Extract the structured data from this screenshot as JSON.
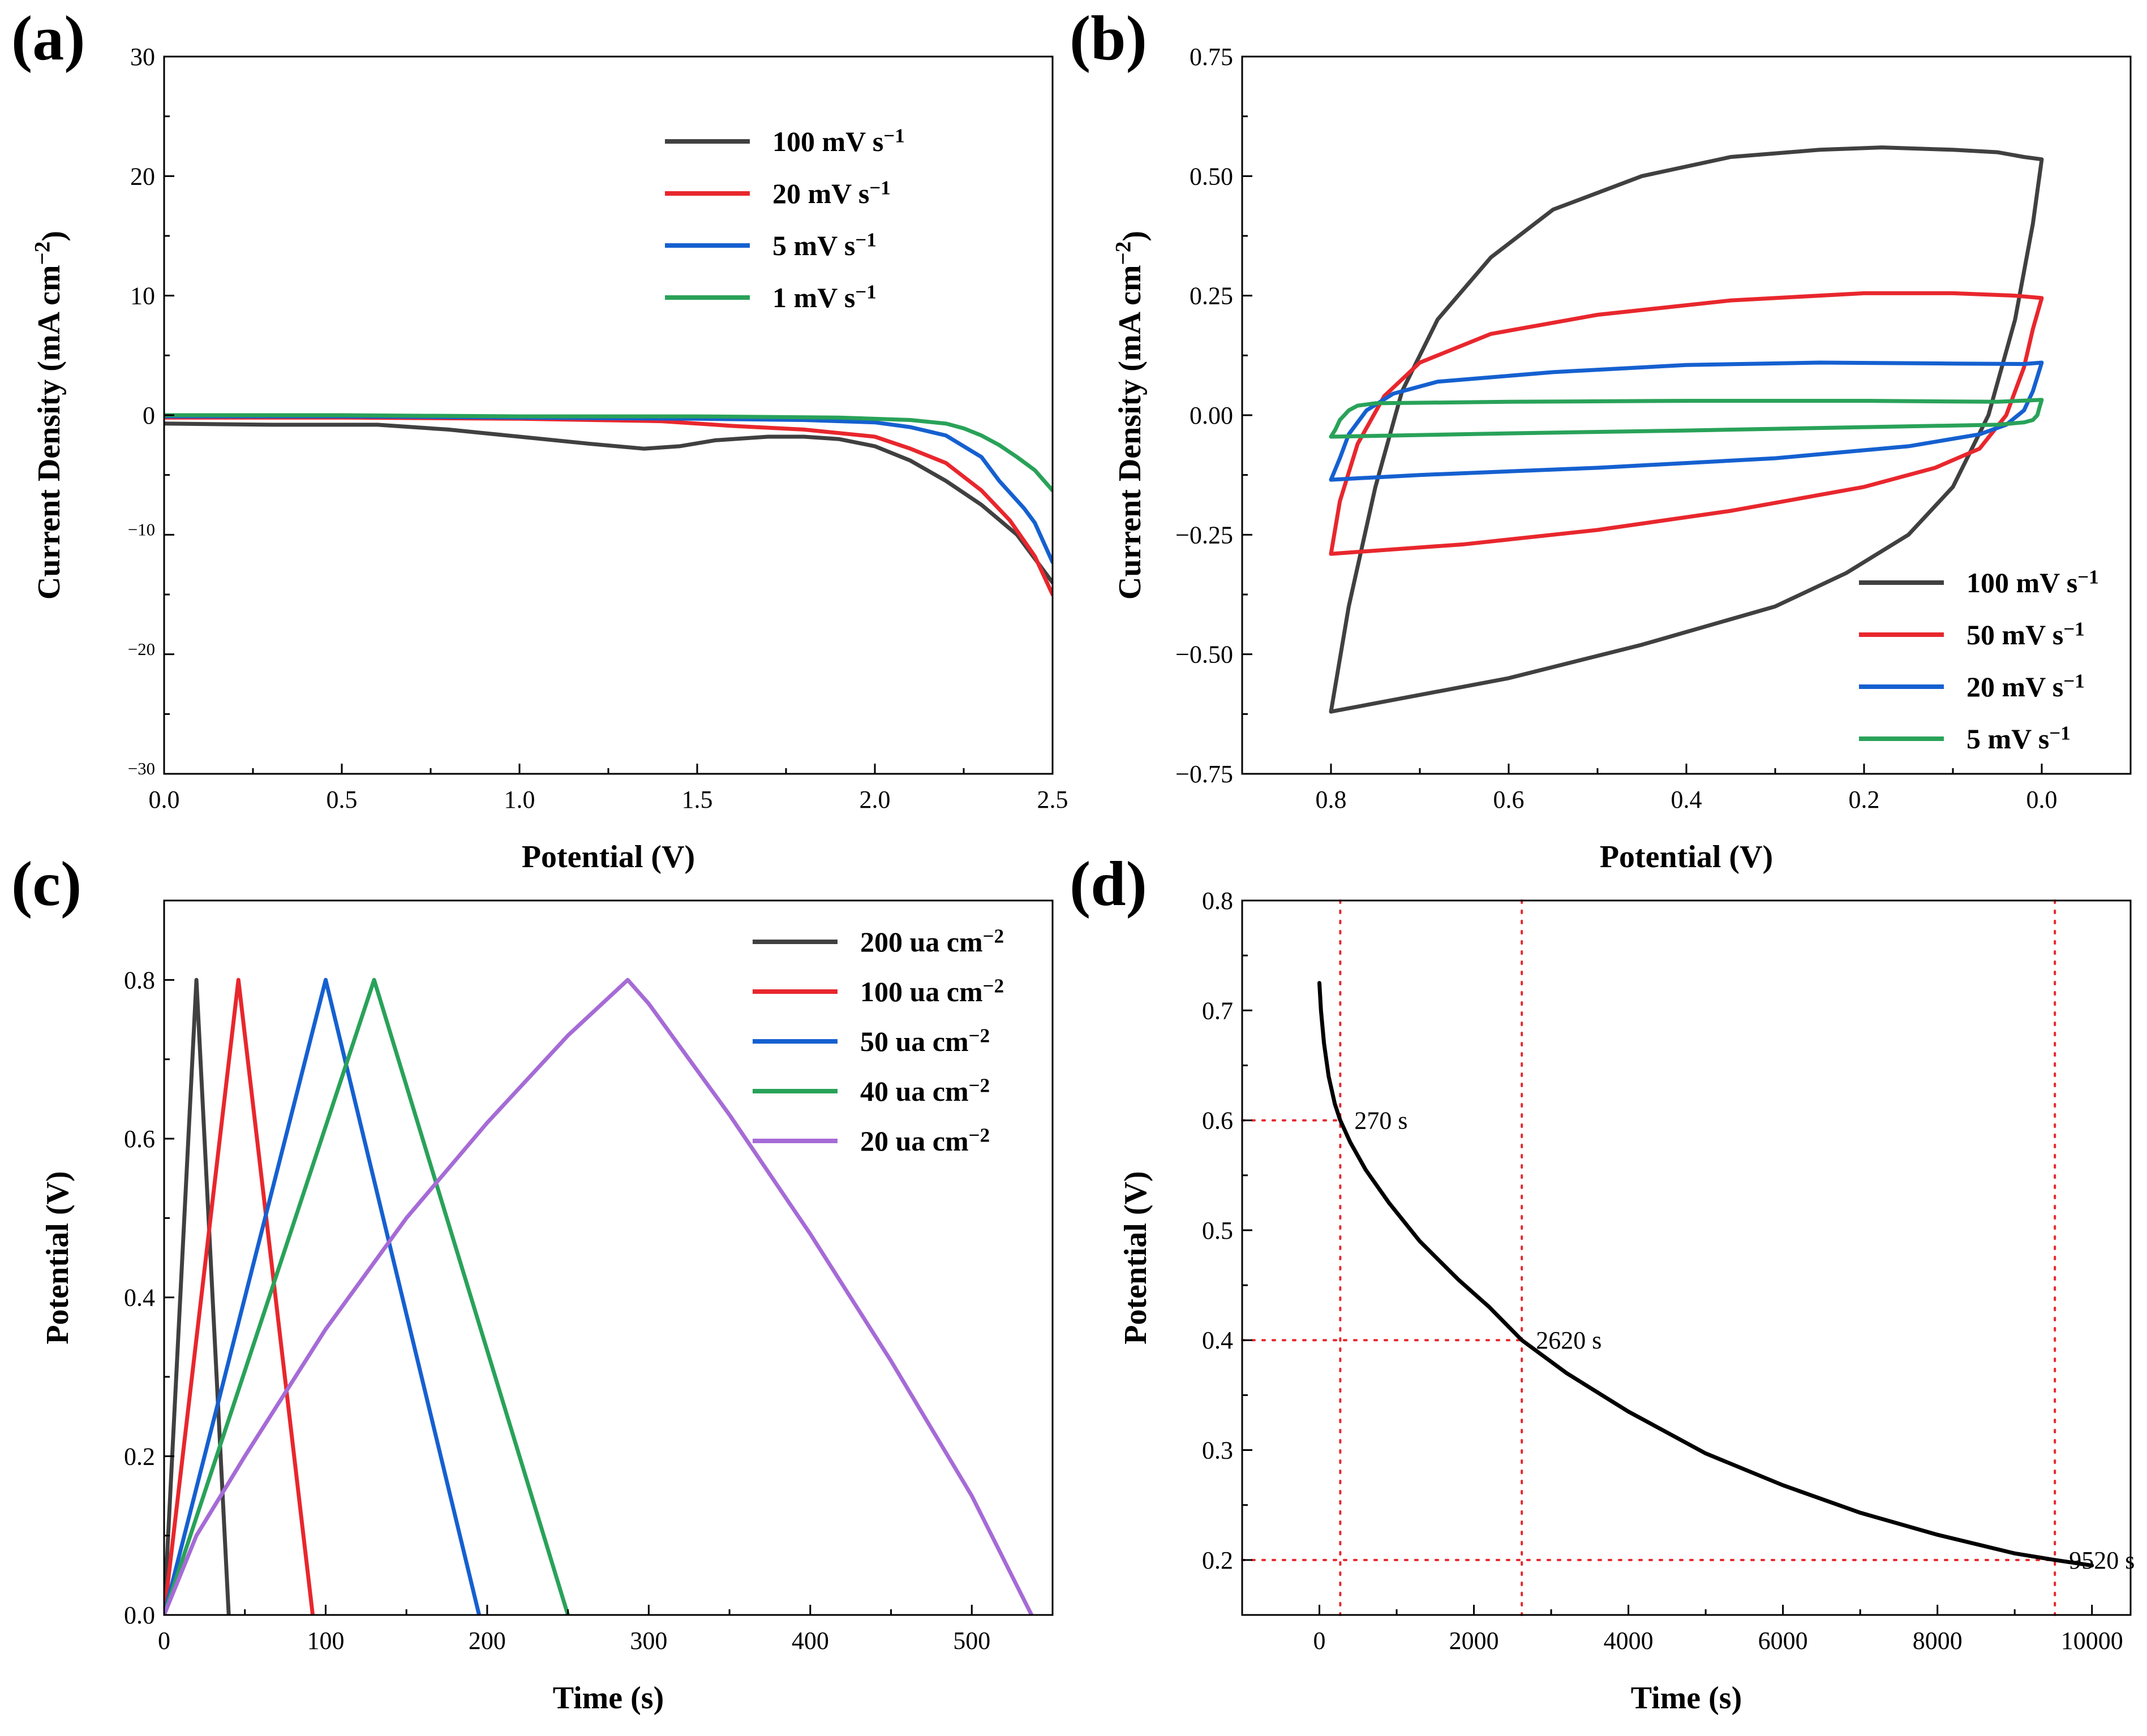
{
  "chart_data": [
    {
      "panel_label": "(a)",
      "type": "line",
      "xlabel": "Potential (V)",
      "ylabel": "Current Density (mA cm−2)",
      "xlim": [
        0,
        2.5
      ],
      "ylim": [
        -30,
        30
      ],
      "xticks": [
        0,
        0.5,
        1.0,
        1.5,
        2.0,
        2.5
      ],
      "xtick_labels": [
        "0.0",
        "0.5",
        "1.0",
        "1.5",
        "2.0",
        "2.5"
      ],
      "yticks": [
        -30,
        -20,
        -10,
        0,
        10,
        20,
        30
      ],
      "ytick_labels": [
        "−30",
        "−20",
        "−10",
        "0",
        "10",
        "20",
        "30"
      ],
      "legend_position": "top-right",
      "series": [
        {
          "name": "100 mV s−1",
          "color": "#404040",
          "x": [
            0,
            0.3,
            0.6,
            0.8,
            1.0,
            1.2,
            1.35,
            1.45,
            1.55,
            1.7,
            1.8,
            1.9,
            2.0,
            2.1,
            2.2,
            2.3,
            2.4,
            2.45,
            2.5
          ],
          "y": [
            -0.7,
            -0.8,
            -0.8,
            -1.2,
            -1.8,
            -2.4,
            -2.8,
            -2.6,
            -2.1,
            -1.8,
            -1.8,
            -2.0,
            -2.6,
            -3.8,
            -5.5,
            -7.5,
            -10.0,
            -12.0,
            -14.0
          ]
        },
        {
          "name": "20 mV s−1",
          "color": "#e8272d",
          "x": [
            0,
            0.5,
            1.0,
            1.4,
            1.6,
            1.8,
            2.0,
            2.1,
            2.2,
            2.3,
            2.38,
            2.45,
            2.5
          ],
          "y": [
            -0.2,
            -0.2,
            -0.3,
            -0.5,
            -0.9,
            -1.2,
            -1.8,
            -2.8,
            -4.0,
            -6.3,
            -8.8,
            -11.8,
            -15.0
          ]
        },
        {
          "name": "5 mV s−1",
          "color": "#1560d0",
          "x": [
            0,
            0.5,
            1.0,
            1.5,
            1.8,
            2.0,
            2.1,
            2.2,
            2.3,
            2.35,
            2.42,
            2.45,
            2.5
          ],
          "y": [
            -0.1,
            -0.1,
            -0.2,
            -0.3,
            -0.4,
            -0.6,
            -1.0,
            -1.7,
            -3.5,
            -5.5,
            -7.8,
            -9.0,
            -12.3
          ]
        },
        {
          "name": "1 mV s−1",
          "color": "#29a259",
          "x": [
            0,
            0.5,
            1.0,
            1.5,
            1.9,
            2.1,
            2.2,
            2.25,
            2.3,
            2.35,
            2.4,
            2.45,
            2.5
          ],
          "y": [
            0.0,
            0.0,
            -0.1,
            -0.1,
            -0.2,
            -0.4,
            -0.7,
            -1.1,
            -1.7,
            -2.5,
            -3.5,
            -4.6,
            -6.3
          ]
        }
      ]
    },
    {
      "panel_label": "(b)",
      "type": "line",
      "xlabel": "Potential (V)",
      "ylabel": "Current Density (mA cm−2)",
      "xlim": [
        0.9,
        -0.1
      ],
      "ylim": [
        -0.75,
        0.75
      ],
      "xticks": [
        0.8,
        0.6,
        0.4,
        0.2,
        0.0
      ],
      "xtick_labels": [
        "0.8",
        "0.6",
        "0.4",
        "0.2",
        "0.0"
      ],
      "yticks": [
        -0.75,
        -0.5,
        -0.25,
        0,
        0.25,
        0.5,
        0.75
      ],
      "ytick_labels": [
        "−0.75",
        "−0.50",
        "−0.25",
        "0.00",
        "0.25",
        "0.50",
        "0.75"
      ],
      "legend_position": "bottom-right",
      "series": [
        {
          "name": "100 mV s−1",
          "color": "#404040",
          "x": [
            0.8,
            0.78,
            0.75,
            0.72,
            0.68,
            0.62,
            0.55,
            0.45,
            0.35,
            0.25,
            0.18,
            0.1,
            0.05,
            0.02,
            0.0,
            0.01,
            0.03,
            0.06,
            0.1,
            0.15,
            0.22,
            0.3,
            0.45,
            0.6,
            0.8
          ],
          "y": [
            -0.62,
            -0.4,
            -0.15,
            0.05,
            0.2,
            0.33,
            0.43,
            0.5,
            0.54,
            0.555,
            0.56,
            0.555,
            0.55,
            0.54,
            0.535,
            0.4,
            0.2,
            0.0,
            -0.15,
            -0.25,
            -0.33,
            -0.4,
            -0.48,
            -0.55,
            -0.62
          ]
        },
        {
          "name": "50 mV s−1",
          "color": "#e8272d",
          "x": [
            0.8,
            0.79,
            0.77,
            0.74,
            0.7,
            0.62,
            0.5,
            0.35,
            0.2,
            0.1,
            0.03,
            0.0,
            0.01,
            0.02,
            0.04,
            0.07,
            0.12,
            0.2,
            0.35,
            0.5,
            0.65,
            0.8
          ],
          "y": [
            -0.29,
            -0.18,
            -0.06,
            0.04,
            0.11,
            0.17,
            0.21,
            0.24,
            0.255,
            0.255,
            0.25,
            0.245,
            0.18,
            0.1,
            0.0,
            -0.07,
            -0.11,
            -0.15,
            -0.2,
            -0.24,
            -0.27,
            -0.29
          ]
        },
        {
          "name": "20 mV s−1",
          "color": "#1560d0",
          "x": [
            0.8,
            0.79,
            0.78,
            0.76,
            0.73,
            0.68,
            0.55,
            0.4,
            0.25,
            0.1,
            0.02,
            0.0,
            0.005,
            0.01,
            0.02,
            0.04,
            0.07,
            0.15,
            0.3,
            0.5,
            0.7,
            0.8
          ],
          "y": [
            -0.135,
            -0.09,
            -0.04,
            0.01,
            0.045,
            0.07,
            0.09,
            0.105,
            0.11,
            0.108,
            0.107,
            0.11,
            0.08,
            0.05,
            0.01,
            -0.02,
            -0.04,
            -0.065,
            -0.09,
            -0.11,
            -0.125,
            -0.135
          ]
        },
        {
          "name": "5 mV s−1",
          "color": "#29a259",
          "x": [
            0.8,
            0.795,
            0.79,
            0.78,
            0.77,
            0.75,
            0.6,
            0.4,
            0.2,
            0.05,
            0.0,
            0.002,
            0.005,
            0.01,
            0.02,
            0.05,
            0.2,
            0.4,
            0.6,
            0.8
          ],
          "y": [
            -0.045,
            -0.03,
            -0.01,
            0.01,
            0.02,
            0.025,
            0.028,
            0.03,
            0.03,
            0.028,
            0.032,
            0.02,
            0.0,
            -0.01,
            -0.015,
            -0.02,
            -0.025,
            -0.032,
            -0.038,
            -0.045
          ]
        }
      ]
    },
    {
      "panel_label": "(c)",
      "type": "line",
      "xlabel": "Time (s)",
      "ylabel": "Potential (V)",
      "xlim": [
        0,
        550
      ],
      "ylim": [
        0,
        0.9
      ],
      "xticks": [
        0,
        100,
        200,
        300,
        400,
        500
      ],
      "xtick_labels": [
        "0",
        "100",
        "200",
        "300",
        "400",
        "500"
      ],
      "yticks": [
        0,
        0.2,
        0.4,
        0.6,
        0.8
      ],
      "ytick_labels": [
        "0.0",
        "0.2",
        "0.4",
        "0.6",
        "0.8"
      ],
      "legend_position": "top-right",
      "series": [
        {
          "name": "200 ua cm−2",
          "color": "#404040",
          "x": [
            0,
            20,
            40
          ],
          "y": [
            0,
            0.8,
            0
          ]
        },
        {
          "name": "100 ua cm−2",
          "color": "#e8272d",
          "x": [
            0,
            46,
            92
          ],
          "y": [
            0,
            0.8,
            0
          ]
        },
        {
          "name": "50 ua cm−2",
          "color": "#1560d0",
          "x": [
            0,
            100,
            195
          ],
          "y": [
            0,
            0.8,
            0
          ]
        },
        {
          "name": "40 ua cm−2",
          "color": "#29a259",
          "x": [
            0,
            130,
            250
          ],
          "y": [
            0,
            0.8,
            0
          ]
        },
        {
          "name": "20 ua cm−2",
          "color": "#a66bd6",
          "x": [
            0,
            20,
            50,
            100,
            150,
            200,
            250,
            287,
            300,
            350,
            400,
            450,
            500,
            537
          ],
          "y": [
            0,
            0.1,
            0.2,
            0.36,
            0.5,
            0.62,
            0.73,
            0.8,
            0.77,
            0.63,
            0.48,
            0.32,
            0.15,
            0
          ]
        }
      ]
    },
    {
      "panel_label": "(d)",
      "type": "line",
      "xlabel": "Time (s)",
      "ylabel": "Potential (V)",
      "xlim": [
        -1000,
        10500
      ],
      "ylim": [
        0.15,
        0.8
      ],
      "xticks": [
        0,
        2000,
        4000,
        6000,
        8000,
        10000
      ],
      "xtick_labels": [
        "0",
        "2000",
        "4000",
        "6000",
        "8000",
        "10000"
      ],
      "yticks": [
        0.2,
        0.3,
        0.4,
        0.5,
        0.6,
        0.7,
        0.8
      ],
      "ytick_labels": [
        "0.2",
        "0.3",
        "0.4",
        "0.5",
        "0.6",
        "0.7",
        "0.8"
      ],
      "series": [
        {
          "color": "#000000",
          "x": [
            0,
            20,
            60,
            120,
            200,
            270,
            400,
            600,
            900,
            1300,
            1800,
            2200,
            2620,
            3200,
            4000,
            5000,
            6000,
            7000,
            8000,
            9000,
            9520,
            10000
          ],
          "y": [
            0.725,
            0.7,
            0.67,
            0.64,
            0.615,
            0.6,
            0.58,
            0.555,
            0.525,
            0.49,
            0.455,
            0.43,
            0.4,
            0.37,
            0.335,
            0.297,
            0.268,
            0.243,
            0.223,
            0.206,
            0.2,
            0.195
          ]
        }
      ],
      "annotations": [
        {
          "label": "270 s",
          "x": 270,
          "y": 0.6
        },
        {
          "label": "2620 s",
          "x": 2620,
          "y": 0.4
        },
        {
          "label": "9520 s",
          "x": 9520,
          "y": 0.2
        }
      ],
      "guide_color": "#e8272d"
    }
  ]
}
